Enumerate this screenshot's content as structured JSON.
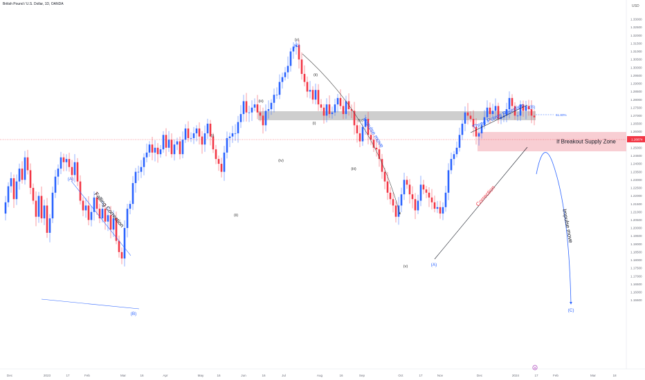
{
  "header": {
    "title": "British Pound / U.S. Dollar, 1D, OANDA",
    "currency": "USD"
  },
  "colors": {
    "up": "#2962ff",
    "down": "#f23645",
    "zone": "#f7c5cb",
    "supply_band": "#bdbdbd",
    "trend": "#2962ff",
    "arrow": "#444444"
  },
  "annotations": {
    "falling_correction": "Falling Correction",
    "impulse_move_1": "Impulse move",
    "three_points_rejection": "Three Points Rejection",
    "correction": "Correction",
    "breakout_zone": "If Breakout Supply Zone",
    "impulse_move_2": "Impulse move",
    "fib_label": "61.80%",
    "price_tag": "1.26874"
  },
  "chart_data": {
    "type": "candlestick",
    "title": "British Pound / U.S. Dollar, 1D, OANDA",
    "ylim": [
      1.153,
      1.338
    ],
    "y_ticks": [
      "1.33000",
      "1.32500",
      "1.32000",
      "1.31500",
      "1.31000",
      "1.30500",
      "1.30000",
      "1.29500",
      "1.29000",
      "1.28500",
      "1.28000",
      "1.27500",
      "1.27000",
      "1.26500",
      "1.26000",
      "1.25500",
      "1.25000",
      "1.24500",
      "1.24000",
      "1.23500",
      "1.23000",
      "1.22500",
      "1.22000",
      "1.21500",
      "1.21000",
      "1.20500",
      "1.20000",
      "1.19500",
      "1.19000",
      "1.18500",
      "1.18000",
      "1.17500",
      "1.17000",
      "1.16500",
      "1.16000",
      "1.15500"
    ],
    "x_labels": [
      "Dec",
      "2023",
      "17",
      "Feb",
      "Mar",
      "16",
      "Apr",
      "May",
      "16",
      "Jun",
      "16",
      "Jul",
      "Aug",
      "16",
      "Sep",
      "Oct",
      "17",
      "Nov",
      "Dec",
      "2024",
      "17",
      "Feb",
      "Mar",
      "18"
    ],
    "last_price": 1.26874,
    "fib_level": {
      "label": "61.80%",
      "value": 1.2768
    },
    "wave_labels": [
      "(A)",
      "(B)",
      "(i)",
      "(ii)",
      "(iii)",
      "(iv)",
      "(v)",
      "(C)",
      "(ii)",
      "(i)",
      "(iv)",
      "(iii)",
      "(v)",
      "(A)",
      "(B)",
      "(C)"
    ],
    "key_points": [
      {
        "label": "(A)",
        "price": 1.2447
      },
      {
        "label": "(B)",
        "price": 1.1803
      },
      {
        "label": "(C)",
        "price": 1.3142
      },
      {
        "label": "(v)",
        "price": 1.2037
      },
      {
        "label": "(A)",
        "price": 1.2069
      },
      {
        "label": "(B)",
        "price": 1.2827
      },
      {
        "label": "(C)",
        "price": 1.1865
      }
    ],
    "zones": [
      {
        "name": "supply_band",
        "low": 1.276,
        "high": 1.2815
      },
      {
        "name": "breakout_zone",
        "low": 1.2632,
        "high": 1.2725
      }
    ],
    "path": [
      1.209,
      1.216,
      1.226,
      1.231,
      1.218,
      1.229,
      1.237,
      1.23,
      1.244,
      1.236,
      1.225,
      1.217,
      1.207,
      1.22,
      1.206,
      1.214,
      1.197,
      1.206,
      1.222,
      1.232,
      1.237,
      1.244,
      1.241,
      1.243,
      1.238,
      1.233,
      1.241,
      1.229,
      1.217,
      1.211,
      1.214,
      1.205,
      1.21,
      1.219,
      1.212,
      1.206,
      1.212,
      1.204,
      1.208,
      1.199,
      1.206,
      1.192,
      1.185,
      1.181,
      1.2,
      1.212,
      1.215,
      1.228,
      1.235,
      1.235,
      1.238,
      1.244,
      1.247,
      1.252,
      1.247,
      1.25,
      1.246,
      1.249,
      1.258,
      1.25,
      1.255,
      1.246,
      1.252,
      1.254,
      1.246,
      1.255,
      1.262,
      1.256,
      1.256,
      1.259,
      1.262,
      1.257,
      1.252,
      1.259,
      1.265,
      1.257,
      1.249,
      1.243,
      1.24,
      1.235,
      1.247,
      1.256,
      1.257,
      1.259,
      1.259,
      1.266,
      1.271,
      1.279,
      1.272,
      1.272,
      1.275,
      1.277,
      1.272,
      1.27,
      1.264,
      1.273,
      1.274,
      1.278,
      1.283,
      1.283,
      1.291,
      1.294,
      1.297,
      1.301,
      1.31,
      1.313,
      1.314,
      1.305,
      1.296,
      1.291,
      1.285,
      1.286,
      1.28,
      1.286,
      1.277,
      1.275,
      1.27,
      1.277,
      1.271,
      1.272,
      1.277,
      1.281,
      1.276,
      1.271,
      1.279,
      1.274,
      1.273,
      1.264,
      1.259,
      1.254,
      1.263,
      1.268,
      1.258,
      1.255,
      1.25,
      1.249,
      1.243,
      1.235,
      1.229,
      1.222,
      1.218,
      1.214,
      1.207,
      1.214,
      1.221,
      1.23,
      1.227,
      1.221,
      1.218,
      1.211,
      1.217,
      1.227,
      1.224,
      1.222,
      1.219,
      1.216,
      1.212,
      1.213,
      1.209,
      1.213,
      1.222,
      1.236,
      1.243,
      1.246,
      1.25,
      1.258,
      1.265,
      1.272,
      1.27,
      1.268,
      1.263,
      1.257,
      1.259,
      1.264,
      1.269,
      1.275,
      1.271,
      1.273,
      1.276,
      1.268,
      1.269,
      1.27,
      1.274,
      1.281,
      1.276,
      1.27,
      1.27,
      1.277,
      1.273,
      1.276,
      1.274,
      1.27,
      1.269
    ]
  }
}
